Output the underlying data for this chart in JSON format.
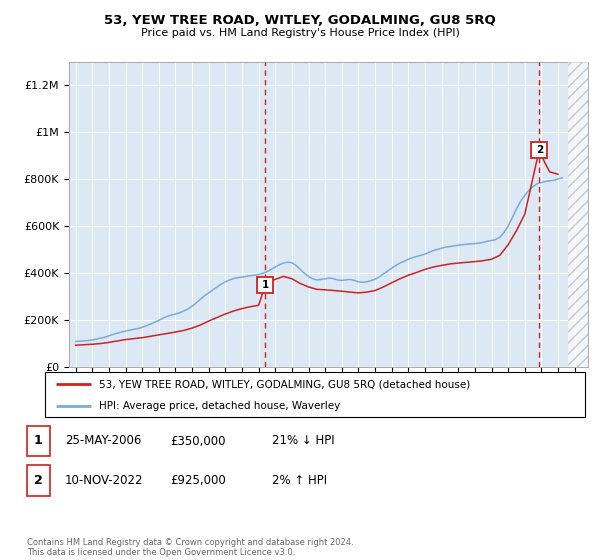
{
  "title": "53, YEW TREE ROAD, WITLEY, GODALMING, GU8 5RQ",
  "subtitle": "Price paid vs. HM Land Registry's House Price Index (HPI)",
  "ylabel_ticks": [
    "£0",
    "£200K",
    "£400K",
    "£600K",
    "£800K",
    "£1M",
    "£1.2M"
  ],
  "ylim": [
    0,
    1300000
  ],
  "yticks": [
    0,
    200000,
    400000,
    600000,
    800000,
    1000000,
    1200000
  ],
  "xlim_start": 1994.6,
  "xlim_end": 2025.8,
  "plot_bg_color": "#dce9f5",
  "figure_bg_color": "#ffffff",
  "grid_color": "#ffffff",
  "hpi_line_color": "#7aabdb",
  "price_line_color": "#cc2222",
  "sale1_year": 2006.4,
  "sale1_price": 350000,
  "sale2_year": 2022.87,
  "sale2_price": 925000,
  "legend_label_red": "53, YEW TREE ROAD, WITLEY, GODALMING, GU8 5RQ (detached house)",
  "legend_label_blue": "HPI: Average price, detached house, Waverley",
  "annotation1_date": "25-MAY-2006",
  "annotation1_price": "£350,000",
  "annotation1_hpi": "21% ↓ HPI",
  "annotation2_date": "10-NOV-2022",
  "annotation2_price": "£925,000",
  "annotation2_hpi": "2% ↑ HPI",
  "footer": "Contains HM Land Registry data © Crown copyright and database right 2024.\nThis data is licensed under the Open Government Licence v3.0.",
  "hpi_years": [
    1995,
    1995.25,
    1995.5,
    1995.75,
    1996,
    1996.25,
    1996.5,
    1996.75,
    1997,
    1997.25,
    1997.5,
    1997.75,
    1998,
    1998.25,
    1998.5,
    1998.75,
    1999,
    1999.25,
    1999.5,
    1999.75,
    2000,
    2000.25,
    2000.5,
    2000.75,
    2001,
    2001.25,
    2001.5,
    2001.75,
    2002,
    2002.25,
    2002.5,
    2002.75,
    2003,
    2003.25,
    2003.5,
    2003.75,
    2004,
    2004.25,
    2004.5,
    2004.75,
    2005,
    2005.25,
    2005.5,
    2005.75,
    2006,
    2006.25,
    2006.5,
    2006.75,
    2007,
    2007.25,
    2007.5,
    2007.75,
    2008,
    2008.25,
    2008.5,
    2008.75,
    2009,
    2009.25,
    2009.5,
    2009.75,
    2010,
    2010.25,
    2010.5,
    2010.75,
    2011,
    2011.25,
    2011.5,
    2011.75,
    2012,
    2012.25,
    2012.5,
    2012.75,
    2013,
    2013.25,
    2013.5,
    2013.75,
    2014,
    2014.25,
    2014.5,
    2014.75,
    2015,
    2015.25,
    2015.5,
    2015.75,
    2016,
    2016.25,
    2016.5,
    2016.75,
    2017,
    2017.25,
    2017.5,
    2017.75,
    2018,
    2018.25,
    2018.5,
    2018.75,
    2019,
    2019.25,
    2019.5,
    2019.75,
    2020,
    2020.25,
    2020.5,
    2020.75,
    2021,
    2021.25,
    2021.5,
    2021.75,
    2022,
    2022.25,
    2022.5,
    2022.75,
    2023,
    2023.25,
    2023.5,
    2023.75,
    2024,
    2024.25
  ],
  "hpi_values": [
    108000,
    109000,
    110500,
    112000,
    114000,
    118000,
    122000,
    126000,
    132000,
    138000,
    143000,
    148000,
    152000,
    156000,
    160000,
    163000,
    168000,
    175000,
    182000,
    190000,
    198000,
    207000,
    215000,
    220000,
    225000,
    230000,
    238000,
    246000,
    258000,
    272000,
    288000,
    303000,
    315000,
    328000,
    340000,
    352000,
    362000,
    370000,
    376000,
    380000,
    382000,
    385000,
    388000,
    390000,
    393000,
    398000,
    405000,
    415000,
    425000,
    435000,
    442000,
    446000,
    443000,
    432000,
    415000,
    398000,
    385000,
    375000,
    370000,
    372000,
    375000,
    378000,
    375000,
    370000,
    368000,
    370000,
    372000,
    368000,
    362000,
    360000,
    362000,
    367000,
    373000,
    383000,
    396000,
    408000,
    420000,
    432000,
    442000,
    450000,
    458000,
    465000,
    470000,
    475000,
    480000,
    488000,
    495000,
    500000,
    505000,
    510000,
    512000,
    515000,
    518000,
    520000,
    522000,
    524000,
    525000,
    527000,
    530000,
    535000,
    538000,
    542000,
    552000,
    572000,
    600000,
    635000,
    672000,
    705000,
    730000,
    752000,
    768000,
    780000,
    785000,
    790000,
    792000,
    795000,
    800000,
    805000
  ],
  "price_years": [
    1995,
    1995.5,
    1996,
    1996.5,
    1997,
    1997.5,
    1998,
    1998.5,
    1999,
    1999.5,
    2000,
    2000.5,
    2001,
    2001.5,
    2002,
    2002.5,
    2003,
    2003.5,
    2004,
    2004.5,
    2005,
    2005.5,
    2006,
    2006.4,
    2006.9,
    2007.5,
    2008,
    2008.5,
    2009,
    2009.5,
    2010,
    2010.5,
    2011,
    2011.5,
    2012,
    2012.5,
    2013,
    2013.5,
    2014,
    2014.5,
    2015,
    2015.5,
    2016,
    2016.5,
    2017,
    2017.5,
    2018,
    2018.5,
    2019,
    2019.5,
    2020,
    2020.5,
    2021,
    2021.5,
    2022,
    2022.87,
    2023.2,
    2023.5,
    2024
  ],
  "price_values": [
    92000,
    94000,
    96000,
    99000,
    104000,
    110000,
    116000,
    120000,
    124000,
    130000,
    136000,
    142000,
    148000,
    155000,
    165000,
    178000,
    195000,
    210000,
    225000,
    238000,
    248000,
    256000,
    262000,
    350000,
    370000,
    385000,
    375000,
    355000,
    340000,
    330000,
    328000,
    325000,
    322000,
    318000,
    315000,
    318000,
    325000,
    340000,
    358000,
    375000,
    390000,
    402000,
    415000,
    425000,
    432000,
    438000,
    442000,
    445000,
    448000,
    452000,
    458000,
    475000,
    520000,
    580000,
    650000,
    925000,
    870000,
    830000,
    820000
  ]
}
